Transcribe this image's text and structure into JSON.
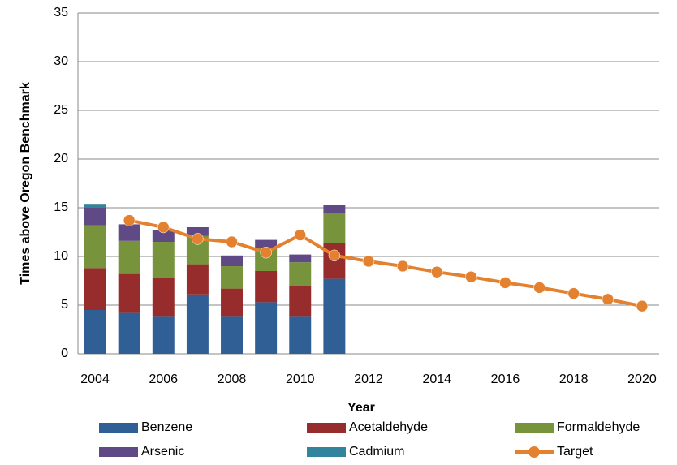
{
  "chart_data": {
    "type": "bar",
    "stacked": true,
    "x_label": "Year",
    "y_label": "Times above Oregon Benchmark",
    "categories": [
      "2004",
      null,
      "2006",
      null,
      "2008",
      null,
      "2010",
      null,
      "2012",
      null,
      "2014",
      null,
      "2016",
      null,
      "2018",
      null,
      "2020"
    ],
    "series": [
      {
        "name": "Benzene",
        "color": "#305f96",
        "values": [
          4.5,
          4.2,
          3.8,
          6.1,
          3.8,
          5.3,
          3.8,
          7.7,
          null,
          null,
          null,
          null,
          null,
          null,
          null,
          null,
          null
        ]
      },
      {
        "name": "Acetaldehyde",
        "color": "#962c2c",
        "values": [
          4.3,
          4.0,
          4.0,
          3.1,
          2.9,
          3.2,
          3.2,
          3.7,
          null,
          null,
          null,
          null,
          null,
          null,
          null,
          null,
          null
        ]
      },
      {
        "name": "Formaldehyde",
        "color": "#77933c",
        "values": [
          4.4,
          3.4,
          3.7,
          2.9,
          2.3,
          2.4,
          2.4,
          3.1,
          null,
          null,
          null,
          null,
          null,
          null,
          null,
          null,
          null
        ]
      },
      {
        "name": "Arsenic",
        "color": "#5f4a86",
        "values": [
          1.8,
          1.7,
          1.2,
          0.9,
          1.1,
          0.8,
          0.8,
          0.8,
          null,
          null,
          null,
          null,
          null,
          null,
          null,
          null,
          null
        ]
      },
      {
        "name": "Cadmium",
        "color": "#31849b",
        "values": [
          0.4,
          0,
          0,
          0,
          0,
          0,
          0,
          0,
          null,
          null,
          null,
          null,
          null,
          null,
          null,
          null,
          null
        ]
      },
      {
        "name": "Target",
        "color": "#e4812f",
        "type": "line",
        "values": [
          null,
          13.7,
          13.0,
          11.8,
          11.5,
          10.4,
          12.2,
          10.1,
          9.5,
          9.0,
          8.4,
          7.9,
          7.3,
          6.8,
          6.2,
          5.6,
          4.9
        ]
      }
    ],
    "ylim": [
      0,
      35
    ],
    "yticks": [
      0,
      5,
      10,
      15,
      20,
      25,
      30,
      35
    ],
    "grid": true,
    "legend": "bottom"
  }
}
